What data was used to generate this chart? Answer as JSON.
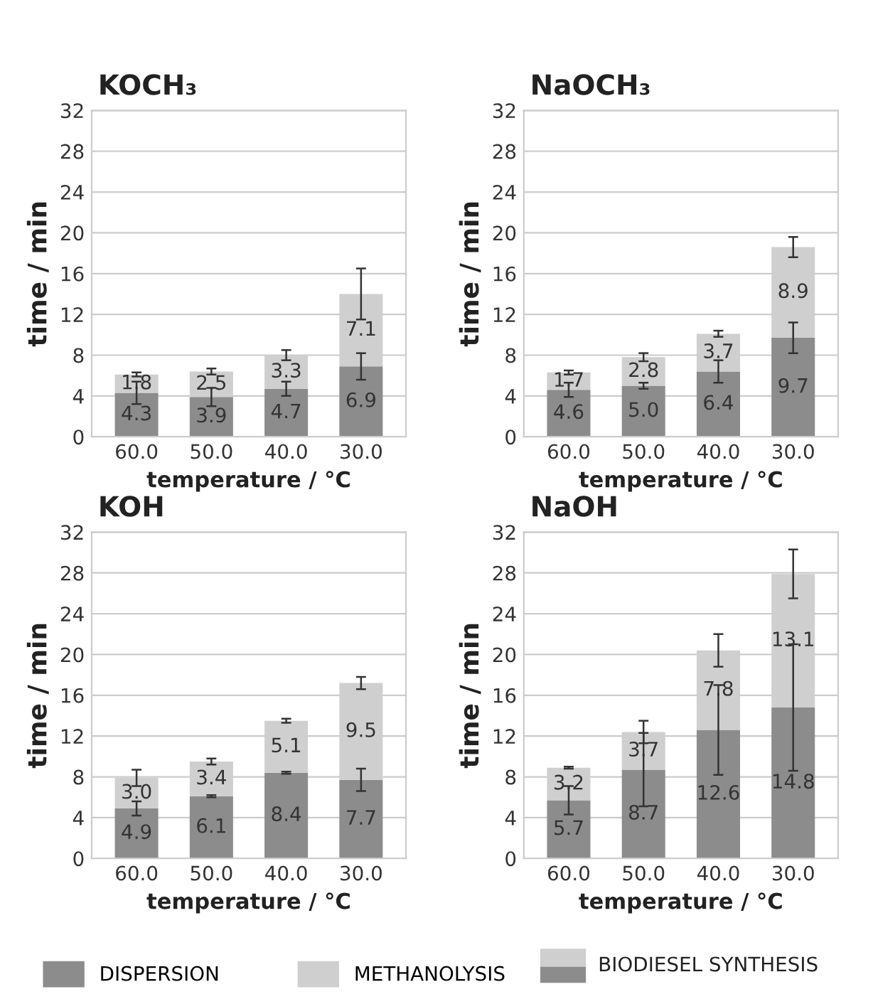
{
  "chart_data": [
    {
      "type": "bar",
      "title": "KOCH₃",
      "xlabel": "temperature / °C",
      "ylabel": "time / min",
      "categories": [
        "60.0",
        "50.0",
        "40.0",
        "30.0"
      ],
      "stacked": true,
      "ylim": [
        0,
        32
      ],
      "yticks": [
        0,
        4,
        8,
        12,
        16,
        20,
        24,
        28,
        32
      ],
      "grid": "y",
      "legend": "bottom",
      "annotations": [
        "BIODIESEL SYNTHESIS"
      ],
      "series": [
        {
          "name": "DISPERSION",
          "color": "#8c8c8c",
          "values": [
            4.3,
            3.9,
            4.7,
            6.9
          ],
          "value_labels": [
            "4.3",
            "3.9",
            "4.7",
            "6.9"
          ],
          "errors": [
            1.1,
            0.9,
            0.7,
            1.3
          ]
        },
        {
          "name": "METHANOLYSIS",
          "color": "#cfcfcf",
          "values": [
            1.8,
            2.5,
            3.3,
            7.1
          ],
          "value_labels": [
            "1.8",
            "2.5",
            "3.3",
            "7.1"
          ],
          "errors": [
            0.2,
            0.3,
            0.5,
            2.5
          ]
        }
      ]
    },
    {
      "type": "bar",
      "title": "NaOCH₃",
      "xlabel": "temperature / °C",
      "ylabel": "time / min",
      "categories": [
        "60.0",
        "50.0",
        "40.0",
        "30.0"
      ],
      "stacked": true,
      "ylim": [
        0,
        32
      ],
      "yticks": [
        0,
        4,
        8,
        12,
        16,
        20,
        24,
        28,
        32
      ],
      "grid": "y",
      "series": [
        {
          "color": "#8c8c8c",
          "values": [
            4.6,
            5.0,
            6.4,
            9.7
          ],
          "value_labels": [
            "4.6",
            "5.0",
            "6.4",
            "9.7"
          ],
          "errors": [
            0.7,
            0.3,
            1.1,
            1.5
          ]
        },
        {
          "color": "#cfcfcf",
          "values": [
            1.7,
            2.8,
            3.7,
            8.9
          ],
          "value_labels": [
            "1.7",
            "2.8",
            "3.7",
            "8.9"
          ],
          "errors": [
            0.2,
            0.4,
            0.3,
            1.0
          ]
        }
      ]
    },
    {
      "type": "bar",
      "title": "KOH",
      "xlabel": "temperature / °C",
      "ylabel": "time / min",
      "categories": [
        "60.0",
        "50.0",
        "40.0",
        "30.0"
      ],
      "stacked": true,
      "ylim": [
        0,
        32
      ],
      "yticks": [
        0,
        4,
        8,
        12,
        16,
        20,
        24,
        28,
        32
      ],
      "grid": "y",
      "series": [
        {
          "color": "#8c8c8c",
          "values": [
            4.9,
            6.1,
            8.4,
            7.7
          ],
          "value_labels": [
            "4.9",
            "6.1",
            "8.4",
            "7.7"
          ],
          "errors": [
            0.7,
            0.1,
            0.1,
            1.1
          ]
        },
        {
          "color": "#cfcfcf",
          "values": [
            3.0,
            3.4,
            5.1,
            9.5
          ],
          "value_labels": [
            "3.0",
            "3.4",
            "5.1",
            "9.5"
          ],
          "errors": [
            0.8,
            0.3,
            0.2,
            0.6
          ]
        }
      ]
    },
    {
      "type": "bar",
      "title": "NaOH",
      "xlabel": "temperature / °C",
      "ylabel": "time / min",
      "categories": [
        "60.0",
        "50.0",
        "40.0",
        "30.0"
      ],
      "stacked": true,
      "ylim": [
        0,
        32
      ],
      "yticks": [
        0,
        4,
        8,
        12,
        16,
        20,
        24,
        28,
        32
      ],
      "grid": "y",
      "series": [
        {
          "color": "#8c8c8c",
          "values": [
            5.7,
            8.7,
            12.6,
            14.8
          ],
          "value_labels": [
            "5.7",
            "8.7",
            "12.6",
            "14.8"
          ],
          "errors": [
            1.4,
            3.6,
            4.4,
            6.2
          ]
        },
        {
          "color": "#cfcfcf",
          "values": [
            3.2,
            3.7,
            7.8,
            13.1
          ],
          "value_labels": [
            "3.2",
            "3.7",
            "7.8",
            "13.1"
          ],
          "errors": [
            0.1,
            1.1,
            1.6,
            2.4
          ]
        }
      ]
    }
  ]
}
